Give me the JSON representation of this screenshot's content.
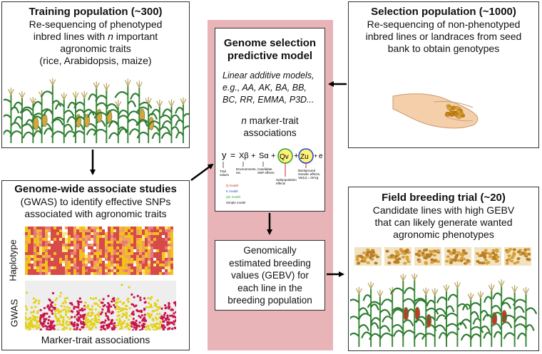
{
  "training": {
    "title": "Training population (~300)",
    "desc_1": "Re-sequencing of phenotyped",
    "desc_2a": "inbred lines with ",
    "desc_2n": "n",
    "desc_2b": " important",
    "desc_3": "agronomic traits",
    "desc_4": "(rice, Arabidopsis, maize)"
  },
  "gwas": {
    "title": "Genome-wide associate studies",
    "desc_1": "(GWAS) to identify effective SNPs",
    "desc_2": "associated with agronomic traits",
    "haplotype_label": "Haplotype",
    "gwas_label": "GWAS",
    "caption": "Marker-trait associations"
  },
  "model": {
    "title_1": "Genome selection",
    "title_2": "predictive model",
    "models_1": "Linear additive models,",
    "models_2": "e.g., AA, AK, BA, BB,",
    "models_3": "BC, RR, EMMA, P3D...",
    "assoc_n": "n",
    "assoc_1": " marker-trait",
    "assoc_2": "associations",
    "eq": {
      "y": "y",
      "eq": "=",
      "xb": "Xβ",
      "plus1": "+",
      "sa": "Sα",
      "plus2": "+",
      "qv": "Qv",
      "plus3": "+",
      "zu": "Zu",
      "plus4": "+",
      "e": "e",
      "trait": "Trait",
      "values": "values",
      "env_1": "Environments,",
      "env_2": "etc.",
      "cand_1": "Candidate",
      "cand_2": "SNP effects",
      "subpop_1": "Subpopulation",
      "subpop_2": "effects",
      "bg_1": "Background",
      "bg_2": "Genetic effects,",
      "bg_3": "Var(u) = 2KVg",
      "q_model": "Q model",
      "k_model": "K model",
      "qk_model": "QK model",
      "simple_model": "Simple model"
    }
  },
  "gebv": {
    "line_1": "Genomically",
    "line_2": "estimated breeding",
    "line_3": "values (GEBV) for",
    "line_4": "each line in the",
    "line_5": "breeding population"
  },
  "selection": {
    "title": "Selection population (~1000)",
    "desc_1": "Re-sequencing of non-phenotyped",
    "desc_2": "inbred lines or landraces from seed",
    "desc_3": "bank to obtain genotypes"
  },
  "field": {
    "title": "Field breeding trial (~20)",
    "desc_1": "Candidate lines with high GEBV",
    "desc_2": "that can likely generate wanted",
    "desc_3": "agronomic phenotypes"
  },
  "colors": {
    "center_panel": "#e8b4b8",
    "stalk": "#3d8a3a",
    "leaf": "#2f7d32",
    "cob": "#d9a441",
    "red_cob": "#c0392b",
    "heat_red": "#d64a4a",
    "heat_yellow": "#f2c21b",
    "manhattan_red": "#c8154a",
    "manhattan_yellow": "#e3d21a",
    "q_model": "#d62728",
    "k_model": "#1f3fd6",
    "qk_model": "#2ca02c"
  }
}
